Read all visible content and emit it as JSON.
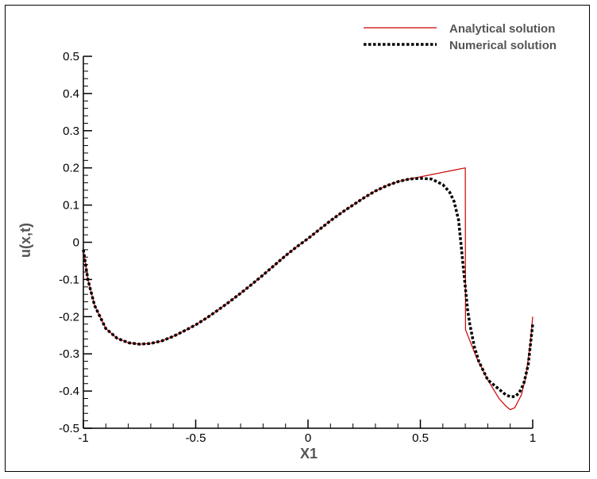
{
  "chart_data": {
    "type": "line",
    "xlabel": "X1",
    "ylabel": "u(x,t)",
    "xlim": [
      -1,
      1
    ],
    "ylim": [
      -0.5,
      0.5
    ],
    "xticks": [
      -1,
      -0.5,
      0,
      0.5,
      1
    ],
    "xtick_labels": [
      "-1",
      "-0.5",
      "0",
      "0.5",
      "1"
    ],
    "yticks": [
      -0.5,
      -0.4,
      -0.3,
      -0.2,
      -0.1,
      0,
      0.1,
      0.2,
      0.3,
      0.4,
      0.5
    ],
    "ytick_labels": [
      "-0.5",
      "-0.4",
      "-0.3",
      "-0.2",
      "-0.1",
      "0",
      "0.1",
      "0.2",
      "0.3",
      "0.4",
      "0.5"
    ],
    "legend_position": "top-right",
    "series": [
      {
        "name": "Analytical solution",
        "color": "#cc0000",
        "style": "solid",
        "x": [
          -1.0,
          -0.98,
          -0.95,
          -0.9,
          -0.85,
          -0.8,
          -0.75,
          -0.7,
          -0.65,
          -0.6,
          -0.55,
          -0.5,
          -0.45,
          -0.4,
          -0.35,
          -0.3,
          -0.25,
          -0.2,
          -0.15,
          -0.1,
          -0.05,
          0.0,
          0.05,
          0.1,
          0.15,
          0.2,
          0.25,
          0.3,
          0.35,
          0.4,
          0.45,
          0.5,
          0.55,
          0.6,
          0.65,
          0.7,
          0.701,
          0.75,
          0.8,
          0.85,
          0.88,
          0.9,
          0.92,
          0.95,
          0.97,
          0.99,
          1.0
        ],
        "y": [
          -0.02,
          -0.1,
          -0.17,
          -0.232,
          -0.258,
          -0.27,
          -0.274,
          -0.272,
          -0.265,
          -0.253,
          -0.238,
          -0.222,
          -0.203,
          -0.182,
          -0.16,
          -0.137,
          -0.113,
          -0.088,
          -0.062,
          -0.036,
          -0.012,
          0.01,
          0.034,
          0.058,
          0.08,
          0.1,
          0.12,
          0.138,
          0.152,
          0.163,
          0.17,
          0.176,
          0.182,
          0.188,
          0.194,
          0.2,
          -0.235,
          -0.31,
          -0.37,
          -0.42,
          -0.44,
          -0.45,
          -0.445,
          -0.41,
          -0.36,
          -0.27,
          -0.2
        ]
      },
      {
        "name": "Numerical solution",
        "color": "#000000",
        "style": "dotted",
        "x": [
          -1.0,
          -0.98,
          -0.95,
          -0.9,
          -0.85,
          -0.8,
          -0.75,
          -0.7,
          -0.65,
          -0.6,
          -0.55,
          -0.5,
          -0.45,
          -0.4,
          -0.35,
          -0.3,
          -0.25,
          -0.2,
          -0.15,
          -0.1,
          -0.05,
          0.0,
          0.05,
          0.1,
          0.15,
          0.2,
          0.25,
          0.3,
          0.35,
          0.4,
          0.45,
          0.5,
          0.55,
          0.6,
          0.63,
          0.65,
          0.67,
          0.68,
          0.69,
          0.7,
          0.71,
          0.72,
          0.74,
          0.76,
          0.8,
          0.85,
          0.88,
          0.9,
          0.92,
          0.94,
          0.96,
          0.98,
          1.0
        ],
        "y": [
          -0.02,
          -0.1,
          -0.17,
          -0.232,
          -0.258,
          -0.27,
          -0.274,
          -0.272,
          -0.265,
          -0.253,
          -0.238,
          -0.222,
          -0.203,
          -0.182,
          -0.16,
          -0.137,
          -0.113,
          -0.088,
          -0.062,
          -0.036,
          -0.012,
          0.01,
          0.034,
          0.058,
          0.08,
          0.1,
          0.12,
          0.138,
          0.152,
          0.163,
          0.17,
          0.172,
          0.17,
          0.155,
          0.135,
          0.11,
          0.06,
          0.0,
          -0.06,
          -0.12,
          -0.18,
          -0.22,
          -0.28,
          -0.32,
          -0.37,
          -0.395,
          -0.41,
          -0.415,
          -0.415,
          -0.405,
          -0.38,
          -0.33,
          -0.22
        ]
      }
    ]
  }
}
